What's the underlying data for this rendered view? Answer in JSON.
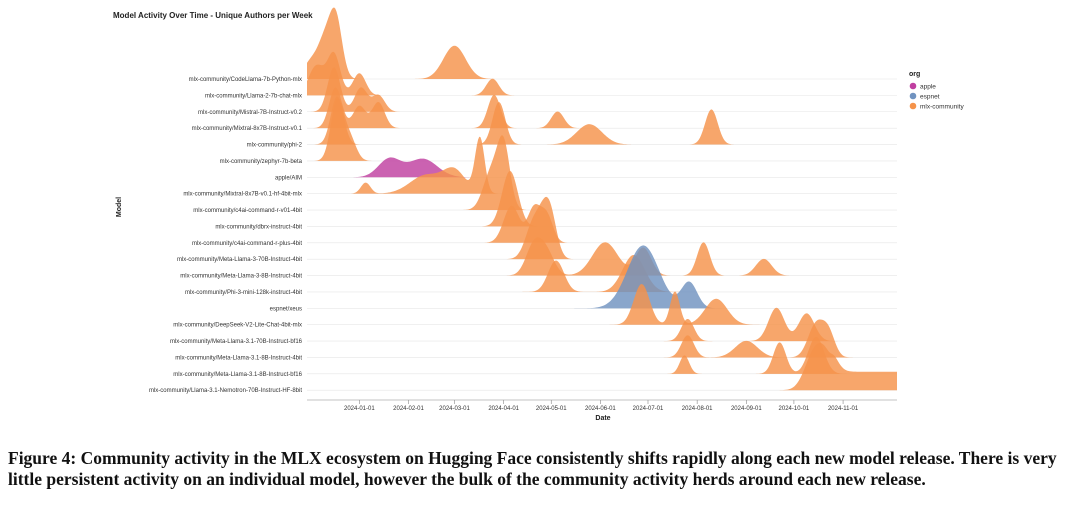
{
  "chart_data": {
    "type": "area",
    "title": "Model Activity Over Time - Unique Authors per Week",
    "xlabel": "Date",
    "ylabel": "Model",
    "xlim": [
      "2023-11-29",
      "2024-12-05"
    ],
    "x_ticks": [
      "2024-01-01",
      "2024-02-01",
      "2024-03-01",
      "2024-04-01",
      "2024-05-01",
      "2024-06-01",
      "2024-07-01",
      "2024-08-01",
      "2024-09-01",
      "2024-10-01",
      "2024-11-01"
    ],
    "legend": {
      "title": "org",
      "placement": "right",
      "entries": [
        {
          "name": "apple",
          "color": "#c03fa0"
        },
        {
          "name": "espnet",
          "color": "#7093c0"
        },
        {
          "name": "mlx-community",
          "color": "#f5934a"
        }
      ]
    },
    "rows": [
      {
        "model": "mlx-community/CodeLlama-7b-Python-mlx",
        "org": "mlx-community",
        "peaks": [
          {
            "x": "2023-12-02",
            "w": 5,
            "h": 1.0
          },
          {
            "x": "2023-12-10",
            "w": 4,
            "h": 1.7
          },
          {
            "x": "2023-12-17",
            "w": 4,
            "h": 3.4
          },
          {
            "x": "2024-03-01",
            "w": 7,
            "h": 1.8
          }
        ]
      },
      {
        "model": "mlx-community/Llama-2-7b-chat-mlx",
        "org": "mlx-community",
        "peaks": [
          {
            "x": "2023-12-05",
            "w": 5,
            "h": 1.6
          },
          {
            "x": "2023-12-16",
            "w": 4,
            "h": 2.2
          },
          {
            "x": "2024-01-01",
            "w": 4,
            "h": 1.2
          },
          {
            "x": "2024-03-25",
            "w": 4,
            "h": 0.9
          }
        ]
      },
      {
        "model": "mlx-community/Mistral-7B-Instruct-v0.2",
        "org": "mlx-community",
        "peaks": [
          {
            "x": "2023-12-16",
            "w": 4,
            "h": 2.4
          },
          {
            "x": "2024-01-02",
            "w": 4,
            "h": 1.3
          },
          {
            "x": "2024-01-13",
            "w": 4,
            "h": 0.9
          }
        ]
      },
      {
        "model": "mlx-community/Mixtral-8x7B-Instruct-v0.1",
        "org": "mlx-community",
        "peaks": [
          {
            "x": "2023-12-17",
            "w": 4,
            "h": 2.2
          },
          {
            "x": "2024-01-01",
            "w": 4,
            "h": 1.2
          },
          {
            "x": "2024-01-13",
            "w": 4,
            "h": 1.4
          },
          {
            "x": "2024-03-26",
            "w": 4,
            "h": 1.8
          },
          {
            "x": "2024-05-05",
            "w": 4,
            "h": 0.9
          }
        ]
      },
      {
        "model": "mlx-community/phi-2",
        "org": "mlx-community",
        "peaks": [
          {
            "x": "2023-12-18",
            "w": 4,
            "h": 2.6
          },
          {
            "x": "2024-03-29",
            "w": 4,
            "h": 2.3
          },
          {
            "x": "2024-05-25",
            "w": 8,
            "h": 1.1
          },
          {
            "x": "2024-08-10",
            "w": 4,
            "h": 1.9
          }
        ]
      },
      {
        "model": "mlx-community/zephyr-7b-beta",
        "org": "mlx-community",
        "peaks": [
          {
            "x": "2023-12-18",
            "w": 4,
            "h": 3.2
          },
          {
            "x": "2023-12-26",
            "w": 4,
            "h": 1.2
          }
        ]
      },
      {
        "model": "apple/AIM",
        "org": "apple",
        "peaks": [
          {
            "x": "2024-01-20",
            "w": 7,
            "h": 1.0
          },
          {
            "x": "2024-02-10",
            "w": 9,
            "h": 1.0
          }
        ]
      },
      {
        "model": "mlx-community/Mixtral-8x7B-v0.1-hf-4bit-mlx",
        "org": "mlx-community",
        "peaks": [
          {
            "x": "2024-01-05",
            "w": 3,
            "h": 0.6
          },
          {
            "x": "2024-02-12",
            "w": 10,
            "h": 1.0
          },
          {
            "x": "2024-03-01",
            "w": 7,
            "h": 1.2
          },
          {
            "x": "2024-03-17",
            "w": 3,
            "h": 3.0
          }
        ]
      },
      {
        "model": "mlx-community/c4ai-command-r-v01-4bit",
        "org": "mlx-community",
        "peaks": [
          {
            "x": "2024-03-24",
            "w": 5,
            "h": 2.0
          },
          {
            "x": "2024-04-01",
            "w": 4,
            "h": 3.4
          }
        ]
      },
      {
        "model": "mlx-community/dbrx-instruct-4bit",
        "org": "mlx-community",
        "peaks": [
          {
            "x": "2024-04-05",
            "w": 5,
            "h": 3.0
          }
        ]
      },
      {
        "model": "mlx-community/c4ai-command-r-plus-4bit",
        "org": "mlx-community",
        "peaks": [
          {
            "x": "2024-04-06",
            "w": 5,
            "h": 2.0
          },
          {
            "x": "2024-04-20",
            "w": 4,
            "h": 1.8
          },
          {
            "x": "2024-04-28",
            "w": 4,
            "h": 1.5
          }
        ]
      },
      {
        "model": "mlx-community/Meta-Llama-3-70B-Instruct-4bit",
        "org": "mlx-community",
        "peaks": [
          {
            "x": "2024-04-20",
            "w": 5,
            "h": 2.0
          },
          {
            "x": "2024-04-27",
            "w": 4,
            "h": 1.5
          },
          {
            "x": "2024-05-01",
            "w": 4,
            "h": 1.8
          }
        ]
      },
      {
        "model": "mlx-community/Meta-Llama-3-8B-Instruct-4bit",
        "org": "mlx-community",
        "peaks": [
          {
            "x": "2024-04-20",
            "w": 5,
            "h": 1.6
          },
          {
            "x": "2024-04-28",
            "w": 5,
            "h": 1.2
          },
          {
            "x": "2024-06-04",
            "w": 8,
            "h": 1.8
          },
          {
            "x": "2024-06-28",
            "w": 5,
            "h": 1.5
          },
          {
            "x": "2024-08-05",
            "w": 4,
            "h": 1.8
          },
          {
            "x": "2024-09-12",
            "w": 5,
            "h": 0.9
          }
        ]
      },
      {
        "model": "mlx-community/Phi-3-mini-128k-instruct-4bit",
        "org": "mlx-community",
        "peaks": [
          {
            "x": "2024-05-04",
            "w": 5,
            "h": 1.7
          },
          {
            "x": "2024-06-22",
            "w": 7,
            "h": 2.0
          }
        ]
      },
      {
        "model": "espnet/xeus",
        "org": "espnet",
        "peaks": [
          {
            "x": "2024-06-28",
            "w": 10,
            "h": 3.4
          },
          {
            "x": "2024-07-27",
            "w": 5,
            "h": 1.4
          }
        ]
      },
      {
        "model": "mlx-community/DeepSeek-V2-Lite-Chat-4bit-mlx",
        "org": "mlx-community",
        "peaks": [
          {
            "x": "2024-06-27",
            "w": 5,
            "h": 2.2
          },
          {
            "x": "2024-07-18",
            "w": 3,
            "h": 1.8
          },
          {
            "x": "2024-08-13",
            "w": 7,
            "h": 1.4
          }
        ]
      },
      {
        "model": "mlx-community/Meta-Llama-3.1-70B-Instruct-bf16",
        "org": "mlx-community",
        "peaks": [
          {
            "x": "2024-07-26",
            "w": 4,
            "h": 1.2
          },
          {
            "x": "2024-09-20",
            "w": 5,
            "h": 1.8
          },
          {
            "x": "2024-10-09",
            "w": 5,
            "h": 1.5
          }
        ]
      },
      {
        "model": "mlx-community/Meta-Llama-3.1-8B-Instruct-4bit",
        "org": "mlx-community",
        "peaks": [
          {
            "x": "2024-07-26",
            "w": 4,
            "h": 1.2
          },
          {
            "x": "2024-09-01",
            "w": 7,
            "h": 0.9
          },
          {
            "x": "2024-10-15",
            "w": 5,
            "h": 1.8
          },
          {
            "x": "2024-10-23",
            "w": 4,
            "h": 1.2
          }
        ]
      },
      {
        "model": "mlx-community/Meta-Llama-3.1-8B-Instruct-bf16",
        "org": "mlx-community",
        "peaks": [
          {
            "x": "2024-07-24",
            "w": 3,
            "h": 1.0
          },
          {
            "x": "2024-09-22",
            "w": 4,
            "h": 1.7
          },
          {
            "x": "2024-10-15",
            "w": 5,
            "h": 2.0
          }
        ]
      },
      {
        "model": "mlx-community/Llama-3.1-Nemotron-70B-Instruct-HF-8bit",
        "org": "mlx-community",
        "peaks": [
          {
            "x": "2024-10-14",
            "w": 6,
            "h": 2.0
          },
          {
            "x": "2024-10-22",
            "w": 5,
            "h": 1.3
          }
        ],
        "plateau": {
          "from": "2024-10-25",
          "to": "2024-12-05",
          "h": 1.0
        }
      }
    ]
  },
  "caption": "Figure 4: Community activity in the MLX ecosystem on Hugging Face consistently shifts rapidly along each new model release. There is very little persistent activity on an individual model, however the bulk of the community activity herds around each new release."
}
